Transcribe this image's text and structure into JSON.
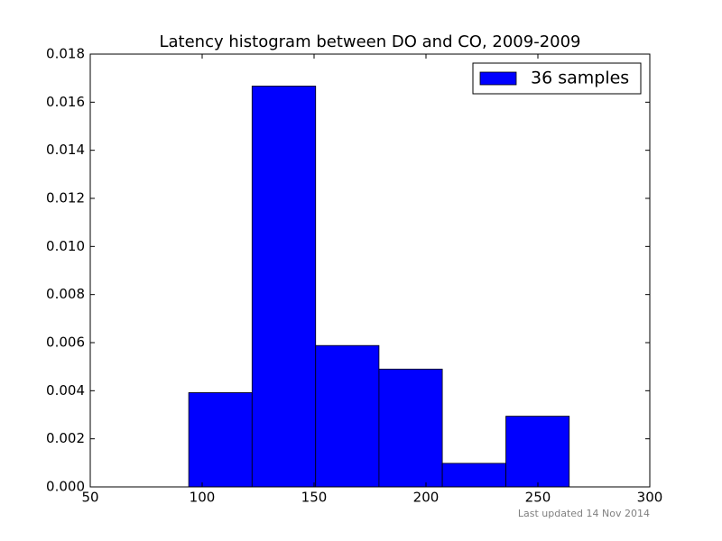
{
  "chart_data": {
    "type": "histogram",
    "title": "Latency histogram between DO and CO, 2009-2009",
    "bins": [
      94,
      122.3,
      150.7,
      179,
      207.3,
      235.7,
      264
    ],
    "series": [
      {
        "name": "36 samples",
        "color": "#0000ff",
        "values": [
          0.00392,
          0.01667,
          0.00588,
          0.0049,
          0.00098,
          0.00294
        ]
      }
    ],
    "xlim": [
      50,
      300
    ],
    "xticks": [
      50,
      100,
      150,
      200,
      250,
      300
    ],
    "ylim": [
      0,
      0.018
    ],
    "yticks": [
      {
        "value": 0,
        "label": "0.000"
      },
      {
        "value": 0.002,
        "label": "0.002"
      },
      {
        "value": 0.004,
        "label": "0.004"
      },
      {
        "value": 0.006,
        "label": "0.006"
      },
      {
        "value": 0.008,
        "label": "0.008"
      },
      {
        "value": 0.01,
        "label": "0.010"
      },
      {
        "value": 0.012,
        "label": "0.012"
      },
      {
        "value": 0.014,
        "label": "0.014"
      },
      {
        "value": 0.016,
        "label": "0.016"
      },
      {
        "value": 0.018,
        "label": "0.018"
      }
    ],
    "legend": "upper right",
    "annotation": "Last updated 14 Nov 2014"
  }
}
